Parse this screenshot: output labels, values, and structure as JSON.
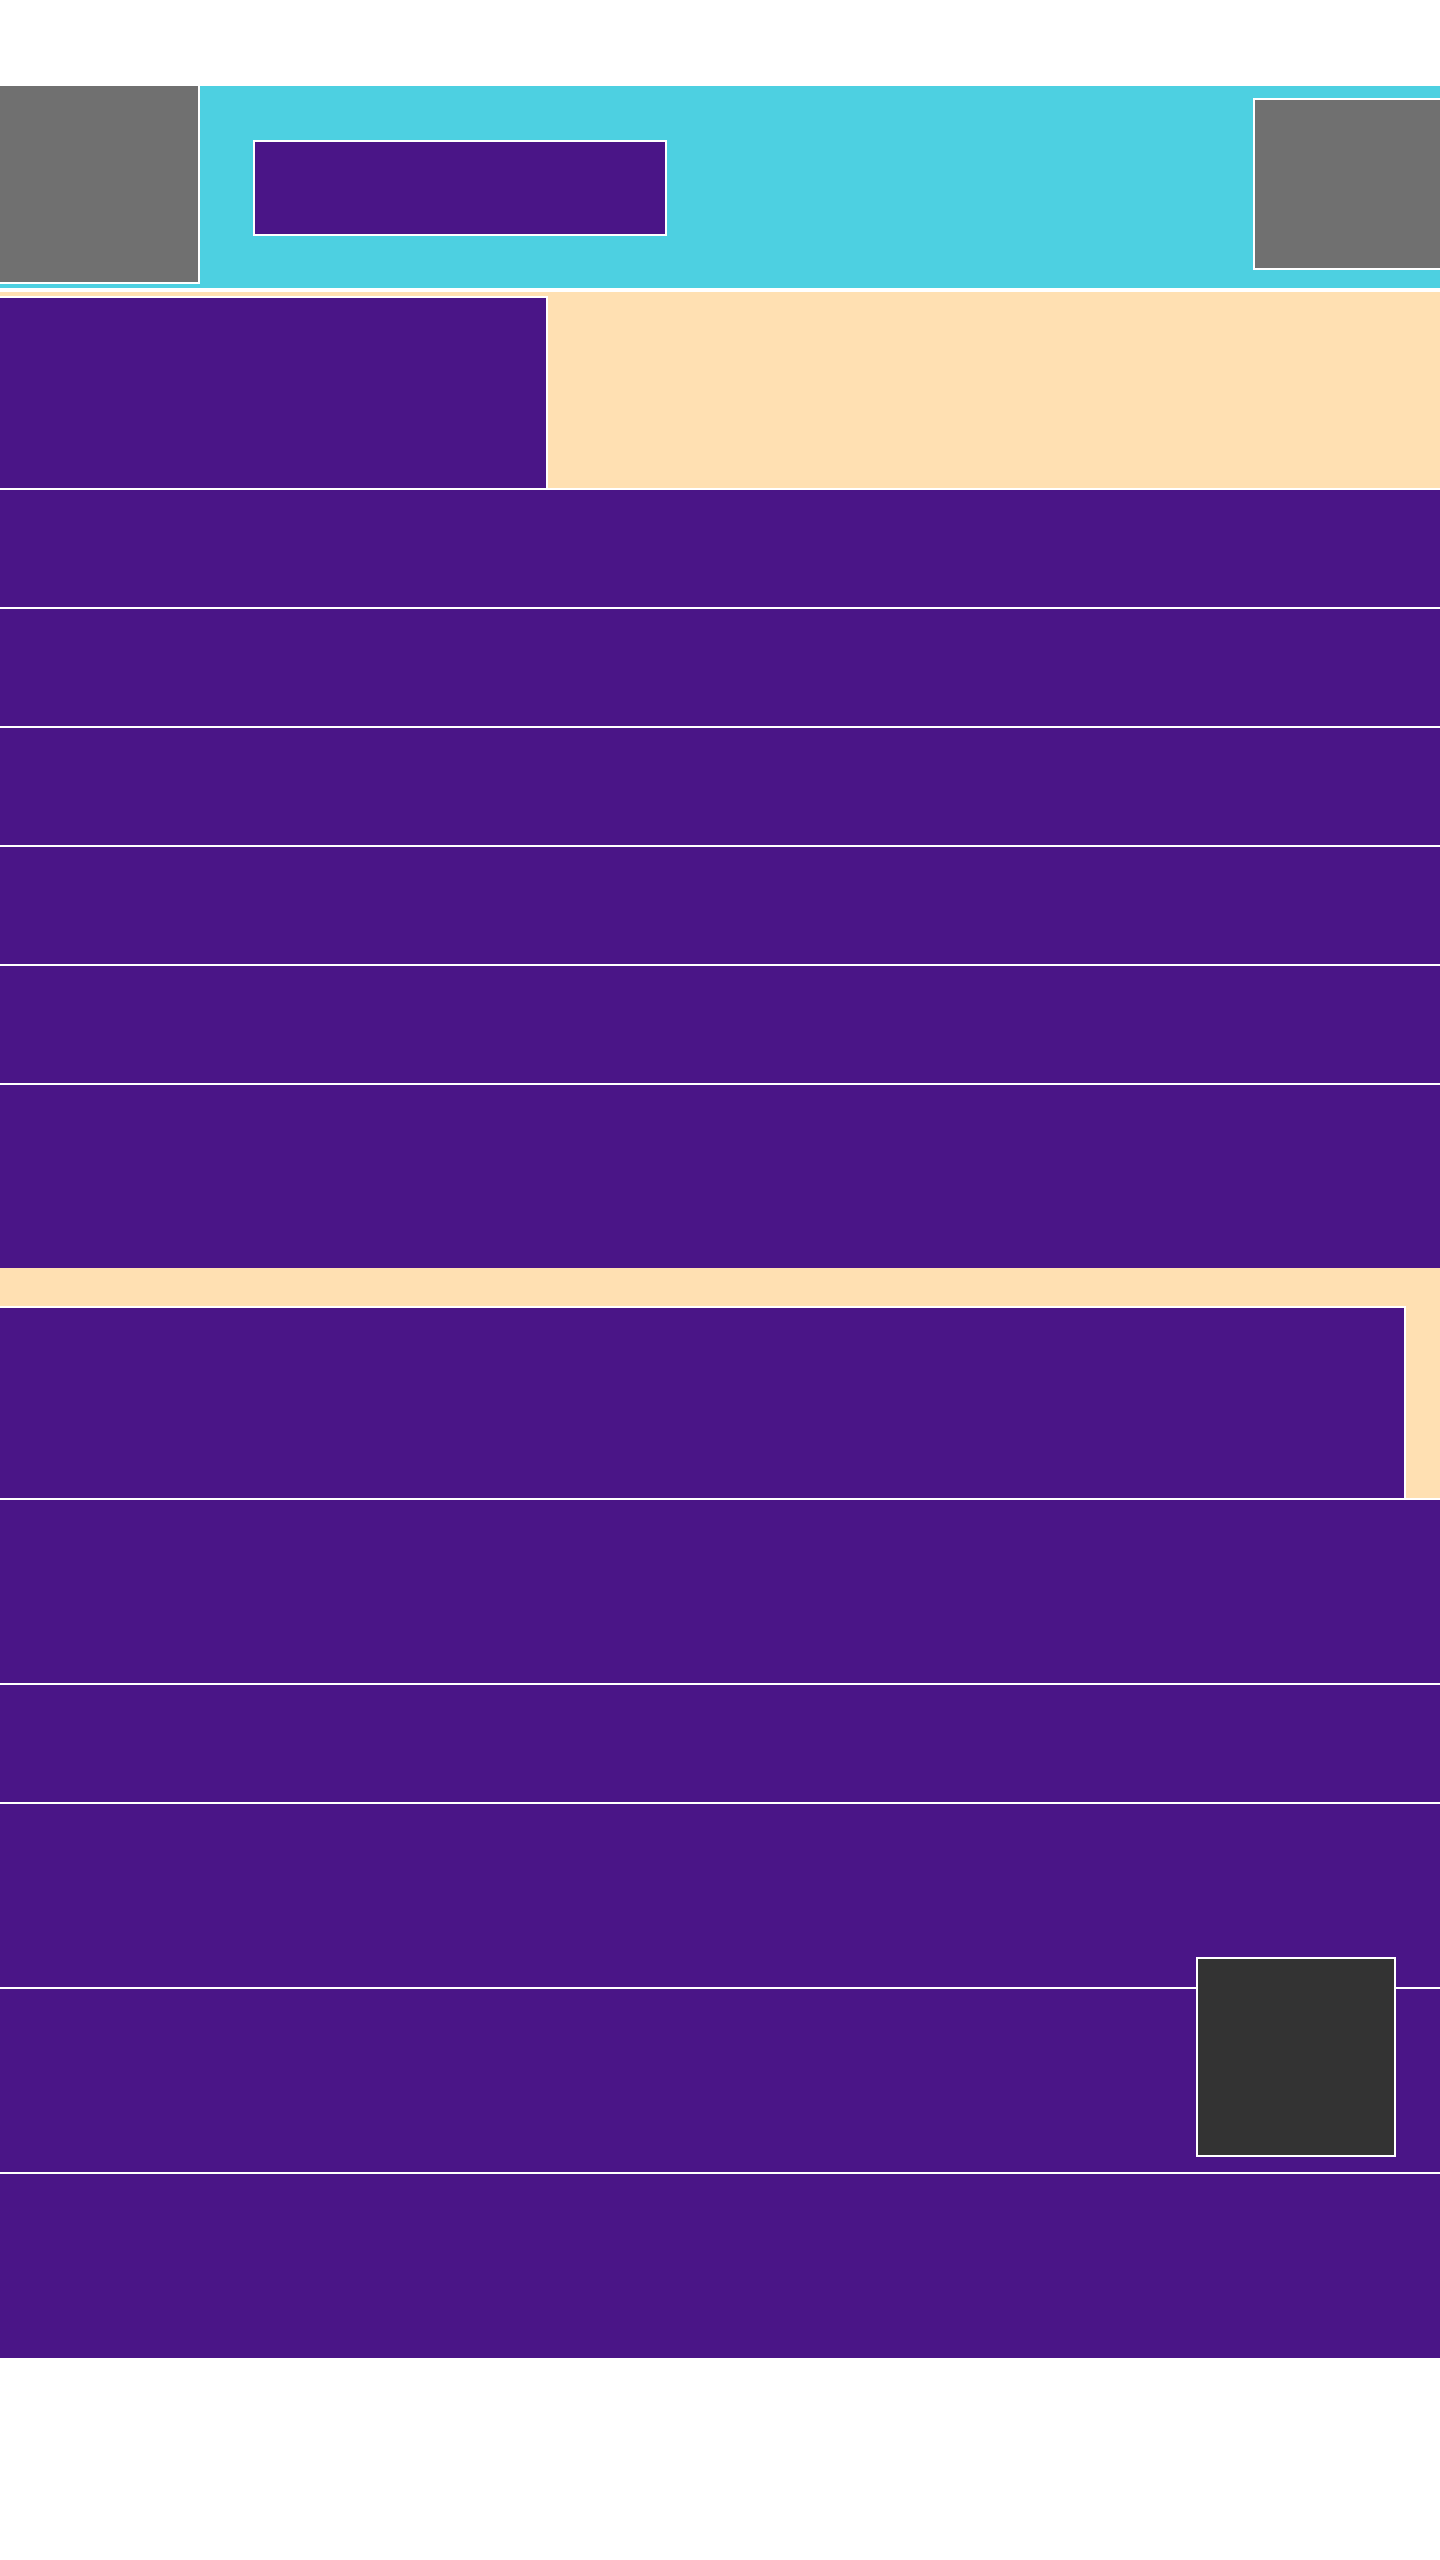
{
  "colors": {
    "page_background": "#ffffff",
    "header_background": "#4dd0e1",
    "content_background": "#ffe0b2",
    "block_fill": "#4a1587",
    "image_placeholder": "#707070",
    "image_placeholder_dark": "#333333",
    "divider": "#ffffff"
  },
  "header": {
    "left_image": "image-placeholder",
    "title_bar": "text-placeholder",
    "right_image": "image-placeholder"
  },
  "content": {
    "top_block": "text-placeholder",
    "list_rows": 5,
    "second_section_rows": 5,
    "floating_thumbnail": "image-placeholder"
  }
}
